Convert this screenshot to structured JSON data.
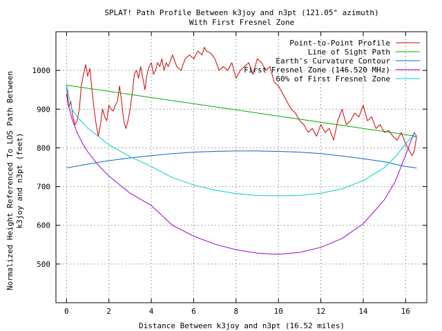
{
  "chart_data": {
    "type": "line",
    "title": "SPLAT! Path Profile Between k3joy and n3pt (121.05° azimuth)",
    "subtitle": "With First Fresnel Zone",
    "xlabel": "Distance Between k3joy and n3pt (16.52 miles)",
    "ylabel_line1": "Normalized Height Referenced To LOS Path Between",
    "ylabel_line2": "k3joy and n3pt (feet)",
    "xlim": [
      -0.5,
      17.0
    ],
    "ylim": [
      400,
      1100
    ],
    "grid": true,
    "legend_position": "top-right",
    "x_ticks": [
      "0",
      "2",
      "4",
      "6",
      "8",
      "10",
      "12",
      "14",
      "16"
    ],
    "y_ticks": [
      "500",
      "600",
      "700",
      "800",
      "900",
      "1000"
    ],
    "series": [
      {
        "name": "Point-to-Point Profile",
        "color": "#cc0000",
        "x": [
          0,
          0.1,
          0.2,
          0.3,
          0.4,
          0.5,
          0.6,
          0.7,
          0.8,
          0.9,
          1.0,
          1.1,
          1.2,
          1.3,
          1.4,
          1.5,
          1.6,
          1.7,
          1.8,
          1.9,
          2.0,
          2.1,
          2.2,
          2.3,
          2.4,
          2.5,
          2.6,
          2.7,
          2.8,
          2.9,
          3.0,
          3.1,
          3.2,
          3.3,
          3.4,
          3.5,
          3.6,
          3.7,
          3.8,
          3.9,
          4.0,
          4.1,
          4.2,
          4.3,
          4.4,
          4.5,
          4.6,
          4.7,
          4.8,
          4.9,
          5.0,
          5.2,
          5.4,
          5.6,
          5.8,
          6.0,
          6.2,
          6.4,
          6.5,
          6.6,
          6.8,
          7.0,
          7.2,
          7.4,
          7.6,
          7.8,
          8.0,
          8.2,
          8.4,
          8.6,
          8.8,
          9.0,
          9.2,
          9.4,
          9.6,
          9.8,
          10.0,
          10.2,
          10.4,
          10.6,
          10.8,
          11.0,
          11.2,
          11.4,
          11.6,
          11.8,
          12.0,
          12.2,
          12.4,
          12.6,
          12.8,
          13.0,
          13.2,
          13.4,
          13.6,
          13.8,
          14.0,
          14.2,
          14.4,
          14.6,
          14.8,
          15.0,
          15.2,
          15.4,
          15.6,
          15.8,
          16.0,
          16.1,
          16.2,
          16.3,
          16.4,
          16.52
        ],
        "y": [
          940,
          905,
          920,
          880,
          860,
          870,
          900,
          960,
          990,
          1015,
          985,
          1005,
          950,
          900,
          860,
          830,
          860,
          900,
          880,
          870,
          910,
          900,
          895,
          910,
          920,
          960,
          920,
          870,
          850,
          870,
          900,
          940,
          990,
          1000,
          980,
          1010,
          980,
          950,
          990,
          1010,
          1020,
          990,
          1000,
          1020,
          1010,
          1030,
          1000,
          1020,
          1010,
          1025,
          1040,
          1010,
          1000,
          1030,
          1040,
          1030,
          1050,
          1040,
          1060,
          1050,
          1045,
          1030,
          1000,
          1010,
          1000,
          1020,
          980,
          1000,
          1010,
          1020,
          990,
          1030,
          1020,
          1000,
          1010,
          970,
          960,
          940,
          920,
          900,
          890,
          870,
          860,
          840,
          850,
          830,
          860,
          840,
          850,
          820,
          870,
          900,
          860,
          870,
          890,
          880,
          910,
          870,
          880,
          850,
          860,
          840,
          845,
          830,
          820,
          840,
          810,
          800,
          790,
          780,
          790,
          830
        ]
      },
      {
        "name": "Line of Sight Path",
        "color": "#00aa00",
        "x": [
          0,
          16.52
        ],
        "y": [
          962,
          830
        ]
      },
      {
        "name": "Earth's Curvature Contour",
        "color": "#0066cc",
        "x": [
          0,
          1,
          2,
          3,
          4,
          5,
          6,
          7,
          8,
          9,
          10,
          11,
          12,
          13,
          14,
          15,
          16,
          16.52
        ],
        "y": [
          748,
          758,
          767,
          774,
          780,
          785,
          789,
          791,
          792,
          792,
          791,
          789,
          785,
          779,
          772,
          764,
          752,
          748
        ]
      },
      {
        "name": "First Fresnel Zone (146.520 MHz)",
        "color": "#9900cc",
        "x": [
          0,
          0.1,
          0.25,
          0.5,
          0.75,
          1,
          1.5,
          2,
          3,
          4,
          5,
          6,
          7,
          8,
          9,
          10,
          11,
          12,
          13,
          14,
          15,
          15.5,
          16,
          16.25,
          16.4,
          16.52
        ],
        "y": [
          962,
          908,
          876,
          839,
          812,
          790,
          755,
          727,
          683,
          651,
          600,
          572,
          551,
          537,
          528,
          525,
          530,
          543,
          566,
          604,
          666,
          712,
          781,
          818,
          840,
          830
        ]
      },
      {
        "name": "60% of First Fresnel Zone",
        "color": "#00cccc",
        "x": [
          0,
          0.25,
          0.5,
          1,
          2,
          3,
          4,
          5,
          6,
          7,
          8,
          9,
          10,
          11,
          12,
          13,
          14,
          15,
          15.5,
          16,
          16.25,
          16.52
        ],
        "y": [
          962,
          900,
          880,
          851,
          808,
          777,
          752,
          723,
          704,
          691,
          682,
          677,
          676,
          677,
          683,
          694,
          715,
          749,
          776,
          810,
          826,
          830
        ]
      }
    ]
  }
}
